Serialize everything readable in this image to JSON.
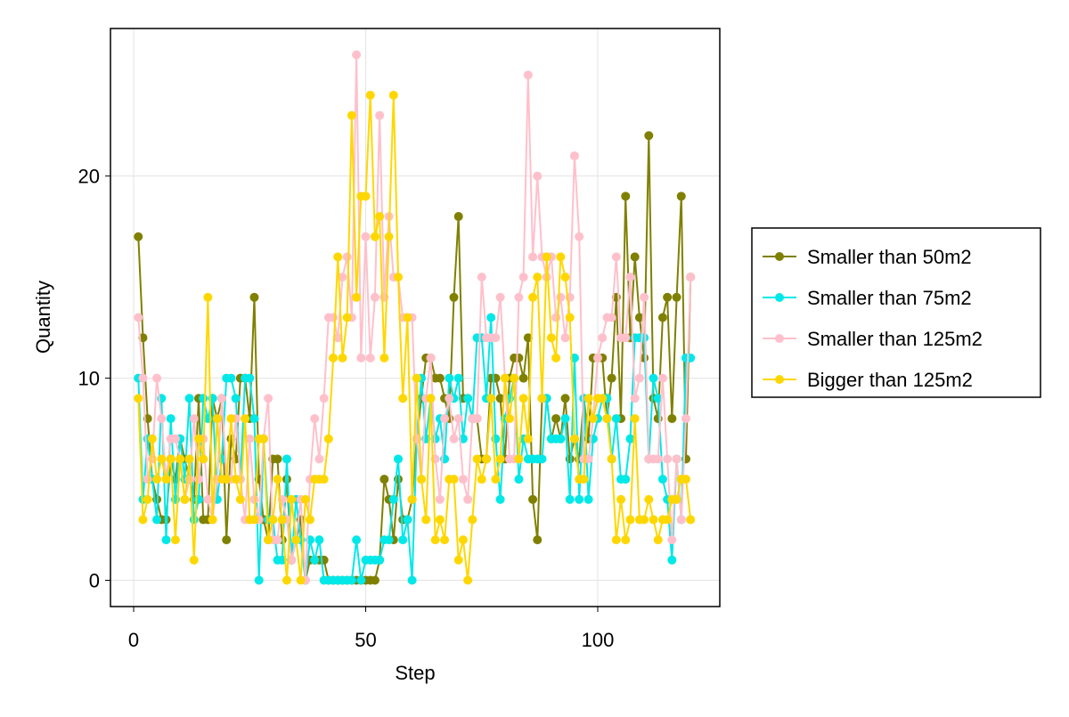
{
  "chart_data": {
    "type": "line",
    "x_label": "Step",
    "y_label": "Quantity",
    "x": [
      1,
      2,
      3,
      4,
      5,
      6,
      7,
      8,
      9,
      10,
      11,
      12,
      13,
      14,
      15,
      16,
      17,
      18,
      19,
      20,
      21,
      22,
      23,
      24,
      25,
      26,
      27,
      28,
      29,
      30,
      31,
      32,
      33,
      34,
      35,
      36,
      37,
      38,
      39,
      40,
      41,
      42,
      43,
      44,
      45,
      46,
      47,
      48,
      49,
      50,
      51,
      52,
      53,
      54,
      55,
      56,
      57,
      58,
      59,
      60,
      61,
      62,
      63,
      64,
      65,
      66,
      67,
      68,
      69,
      70,
      71,
      72,
      73,
      74,
      75,
      76,
      77,
      78,
      79,
      80,
      81,
      82,
      83,
      84,
      85,
      86,
      87,
      88,
      89,
      90,
      91,
      92,
      93,
      94,
      95,
      96,
      97,
      98,
      99,
      100,
      101,
      102,
      103,
      104,
      105,
      106,
      107,
      108,
      109,
      110,
      111,
      112,
      113,
      114,
      115,
      116,
      117,
      118,
      119,
      120
    ],
    "series": [
      {
        "name": "Smaller than 50m2",
        "color": "#808000",
        "values": [
          17,
          12,
          8,
          5,
          4,
          3,
          3,
          6,
          5,
          7,
          6,
          5,
          4,
          9,
          3,
          3,
          9,
          8,
          9,
          2,
          7,
          6,
          10,
          10,
          8,
          14,
          5,
          3,
          2,
          6,
          6,
          2,
          5,
          1,
          2,
          3,
          0,
          1,
          1,
          1,
          1,
          0,
          0,
          0,
          0,
          0,
          0,
          0,
          0,
          0,
          0,
          0,
          1,
          5,
          4,
          2,
          5,
          3,
          3,
          4,
          7,
          9,
          11,
          11,
          10,
          10,
          9,
          8,
          14,
          18,
          9,
          9,
          8,
          8,
          6,
          6,
          10,
          10,
          9,
          6,
          10,
          11,
          11,
          10,
          12,
          4,
          2,
          9,
          9,
          7,
          8,
          7,
          9,
          6,
          7,
          6,
          9,
          7,
          11,
          11,
          11,
          8,
          10,
          14,
          8,
          19,
          12,
          16,
          13,
          11,
          22,
          9,
          8,
          13,
          14,
          8,
          14,
          19,
          6,
          15
        ]
      },
      {
        "name": "Smaller than 75m2",
        "color": "#00e8e8",
        "values": [
          10,
          4,
          7,
          5,
          3,
          9,
          2,
          8,
          4,
          7,
          5,
          9,
          3,
          4,
          9,
          8,
          9,
          4,
          6,
          10,
          10,
          9,
          5,
          10,
          10,
          8,
          0,
          7,
          3,
          3,
          1,
          1,
          6,
          1,
          4,
          2,
          0,
          2,
          1,
          2,
          0,
          0,
          0,
          0,
          0,
          0,
          0,
          2,
          0,
          1,
          1,
          1,
          1,
          2,
          2,
          4,
          6,
          2,
          3,
          0,
          7,
          10,
          7,
          9,
          7,
          8,
          6,
          10,
          9,
          10,
          7,
          9,
          8,
          12,
          12,
          9,
          13,
          7,
          4,
          8,
          9,
          10,
          5,
          7,
          6,
          6,
          6,
          6,
          9,
          7,
          7,
          7,
          8,
          4,
          11,
          4,
          9,
          4,
          7,
          8,
          9,
          9,
          6,
          8,
          5,
          5,
          7,
          12,
          12,
          12,
          6,
          10,
          9,
          5,
          4,
          1,
          6,
          3,
          11,
          11
        ]
      },
      {
        "name": "Smaller than 125m2",
        "color": "#ffc0cb",
        "values": [
          13,
          10,
          5,
          6,
          10,
          8,
          5,
          7,
          7,
          6,
          4,
          5,
          8,
          5,
          7,
          4,
          3,
          5,
          9,
          5,
          5,
          8,
          5,
          3,
          7,
          4,
          3,
          7,
          9,
          2,
          2,
          4,
          3,
          1,
          2,
          4,
          0,
          5,
          8,
          6,
          9,
          13,
          13,
          12,
          15,
          16,
          13,
          26,
          11,
          17,
          11,
          14,
          23,
          14,
          18,
          15,
          15,
          13,
          13,
          13,
          7,
          5,
          9,
          11,
          6,
          4,
          8,
          9,
          7,
          8,
          5,
          4,
          8,
          8,
          15,
          12,
          12,
          12,
          14,
          10,
          6,
          6,
          14,
          15,
          25,
          16,
          20,
          16,
          15,
          16,
          13,
          14,
          12,
          14,
          21,
          17,
          6,
          6,
          8,
          11,
          12,
          13,
          13,
          16,
          12,
          12,
          15,
          9,
          10,
          14,
          6,
          6,
          6,
          10,
          6,
          2,
          6,
          3,
          8,
          15
        ]
      },
      {
        "name": "Bigger than 125m2",
        "color": "#ffd700",
        "values": [
          9,
          3,
          4,
          7,
          5,
          6,
          5,
          6,
          2,
          6,
          4,
          6,
          1,
          7,
          6,
          14,
          3,
          8,
          5,
          5,
          8,
          5,
          4,
          8,
          3,
          3,
          7,
          7,
          2,
          3,
          5,
          3,
          0,
          4,
          2,
          0,
          4,
          3,
          5,
          5,
          5,
          7,
          11,
          16,
          11,
          13,
          23,
          14,
          19,
          19,
          24,
          17,
          18,
          11,
          17,
          24,
          15,
          9,
          13,
          4,
          10,
          5,
          3,
          9,
          2,
          3,
          2,
          5,
          5,
          1,
          2,
          0,
          3,
          6,
          5,
          6,
          9,
          5,
          6,
          10,
          8,
          10,
          6,
          9,
          7,
          14,
          15,
          9,
          16,
          12,
          11,
          16,
          15,
          13,
          7,
          5,
          5,
          9,
          8,
          9,
          9,
          8,
          6,
          2,
          4,
          2,
          3,
          8,
          3,
          3,
          4,
          3,
          2,
          3,
          3,
          4,
          4,
          5,
          5,
          3
        ]
      }
    ],
    "xlim": [
      -5,
      126.3
    ],
    "ylim": [
      -1.3,
      27.3
    ],
    "xticks": [
      0,
      50,
      100
    ],
    "yticks": [
      0,
      10,
      20
    ],
    "grid": true,
    "legend": "right"
  }
}
